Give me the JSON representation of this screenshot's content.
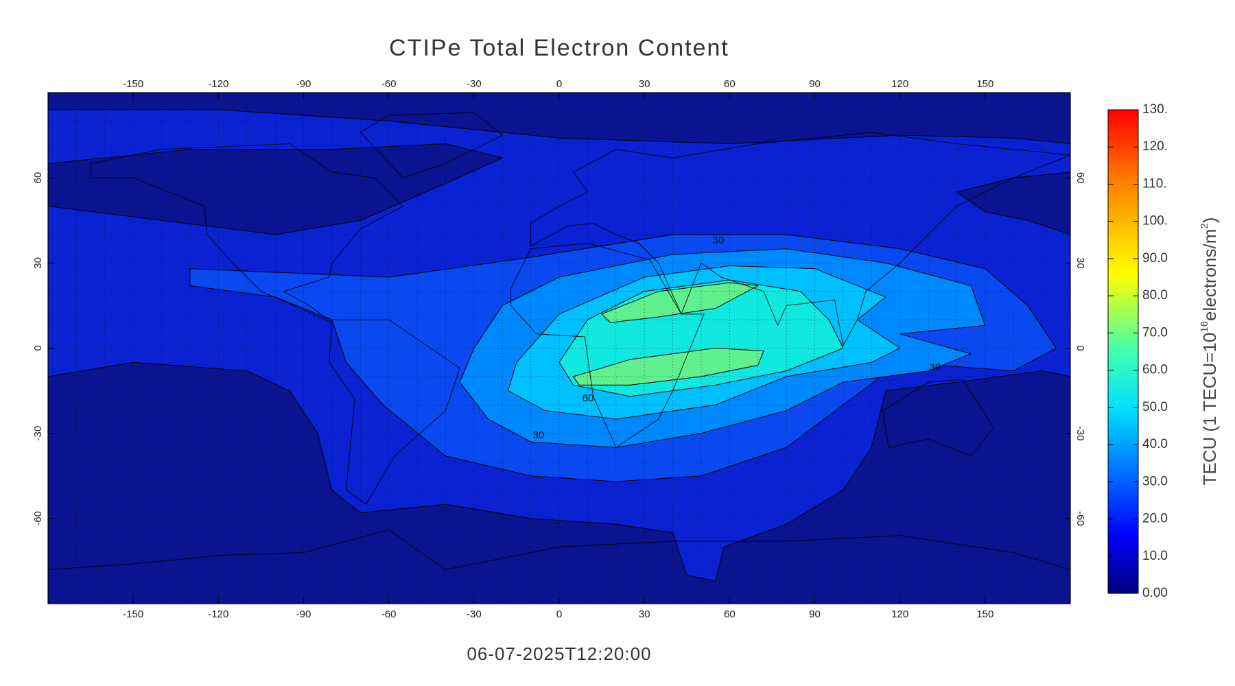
{
  "title": "CTIPe Total Electron Content",
  "timestamp": "06-07-2025T12:20:00",
  "map": {
    "xlim": [
      -180,
      180
    ],
    "ylim": [
      -90,
      90
    ],
    "xticks": [
      -150,
      -120,
      -90,
      -60,
      -30,
      0,
      30,
      60,
      90,
      120,
      150
    ],
    "yticks": [
      -60,
      -30,
      0,
      30,
      60
    ],
    "contour_labels": [
      "30",
      "60",
      "30",
      "30"
    ]
  },
  "colorbar": {
    "lim": [
      0,
      130
    ],
    "ticks": [
      {
        "value": 0,
        "label": "0.00"
      },
      {
        "value": 10,
        "label": "10.0"
      },
      {
        "value": 20,
        "label": "20.0"
      },
      {
        "value": 30,
        "label": "30.0"
      },
      {
        "value": 40,
        "label": "40.0"
      },
      {
        "value": 50,
        "label": "50.0"
      },
      {
        "value": 60,
        "label": "60.0"
      },
      {
        "value": 70,
        "label": "70.0"
      },
      {
        "value": 80,
        "label": "80.0"
      },
      {
        "value": 90,
        "label": "90.0"
      },
      {
        "value": 100,
        "label": "100."
      },
      {
        "value": 110,
        "label": "110."
      },
      {
        "value": 120,
        "label": "120."
      },
      {
        "value": 130,
        "label": "130."
      }
    ],
    "label": [
      "TECU (1 TECU=10",
      "16",
      "electrons/m",
      "2",
      ")"
    ]
  }
}
